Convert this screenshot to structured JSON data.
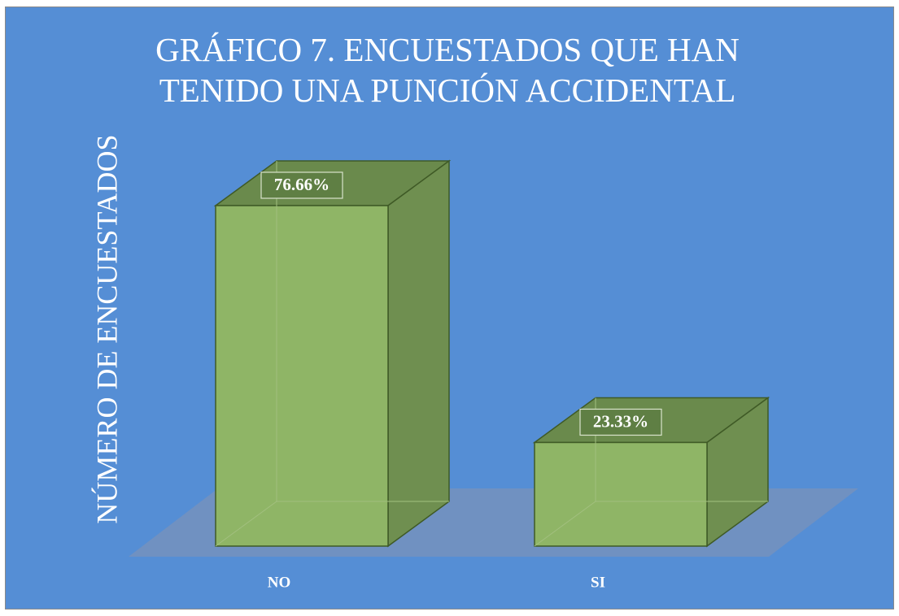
{
  "chart_data": {
    "type": "bar3d",
    "title": "GRÁFICO 7. ENCUESTADOS QUE HAN TENIDO UNA PUNCIÓN ACCIDENTAL",
    "y_label": "NÚMERO DE ENCUESTADOS",
    "categories": [
      "NO",
      "SI"
    ],
    "values": [
      76.66,
      23.33
    ],
    "value_labels": [
      "76.66%",
      "23.33%"
    ],
    "color": "#8fb566"
  }
}
